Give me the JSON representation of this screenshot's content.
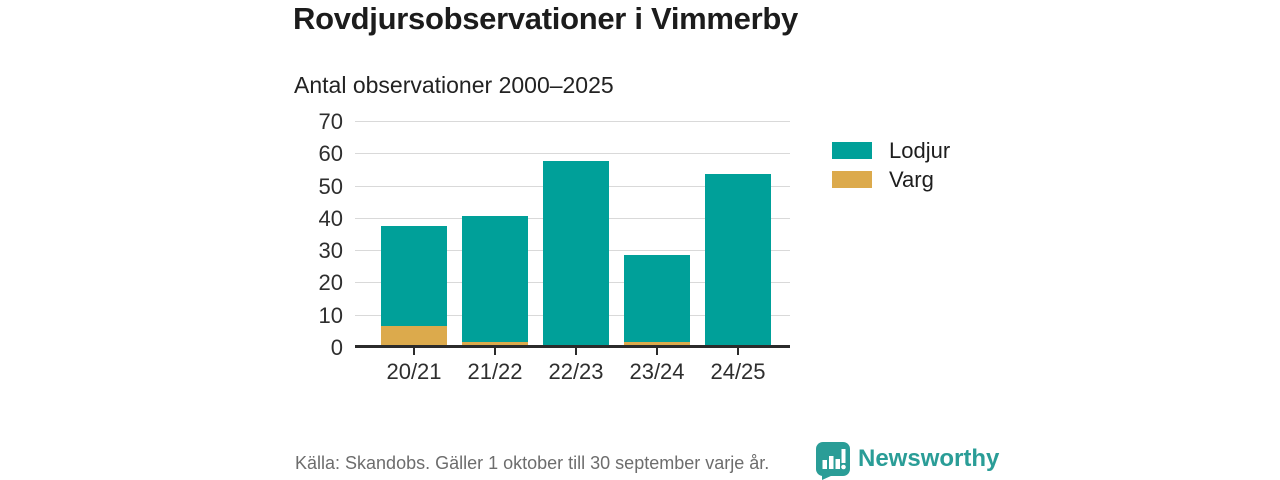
{
  "title": "Rovdjursobservationer i Vimmerby",
  "subtitle": "Antal observationer 2000–2025",
  "colors": {
    "lodjur": "#00a099",
    "varg": "#dcaa4c",
    "axis": "#2b2b2b",
    "grid": "#d9d9d9",
    "brand": "#2a9d97",
    "footer_text": "#6d6d6d"
  },
  "chart_data": {
    "type": "bar",
    "stacked": true,
    "title": "Antal observationer 2000–2025",
    "categories": [
      "20/21",
      "21/22",
      "22/23",
      "23/24",
      "24/25"
    ],
    "series": [
      {
        "name": "Lodjur",
        "color": "#00a099",
        "values": [
          31,
          39,
          57,
          27,
          53
        ]
      },
      {
        "name": "Varg",
        "color": "#dcaa4c",
        "values": [
          6,
          1,
          0,
          1,
          0
        ]
      }
    ],
    "stack_order_bottom_to_top": [
      "Varg",
      "Lodjur"
    ],
    "totals": [
      37,
      40,
      57,
      28,
      53
    ],
    "xlabel": "",
    "ylabel": "",
    "ylim": [
      0,
      70
    ],
    "ytick_step": 10,
    "yticks": [
      0,
      10,
      20,
      30,
      40,
      50,
      60,
      70
    ],
    "grid": true,
    "legend_position": "right"
  },
  "legend": [
    {
      "label": "Lodjur",
      "color": "#00a099"
    },
    {
      "label": "Varg",
      "color": "#dcaa4c"
    }
  ],
  "footer": {
    "source": "Källa: Skandobs. Gäller 1 oktober till 30 september varje år.",
    "brand": "Newsworthy"
  }
}
